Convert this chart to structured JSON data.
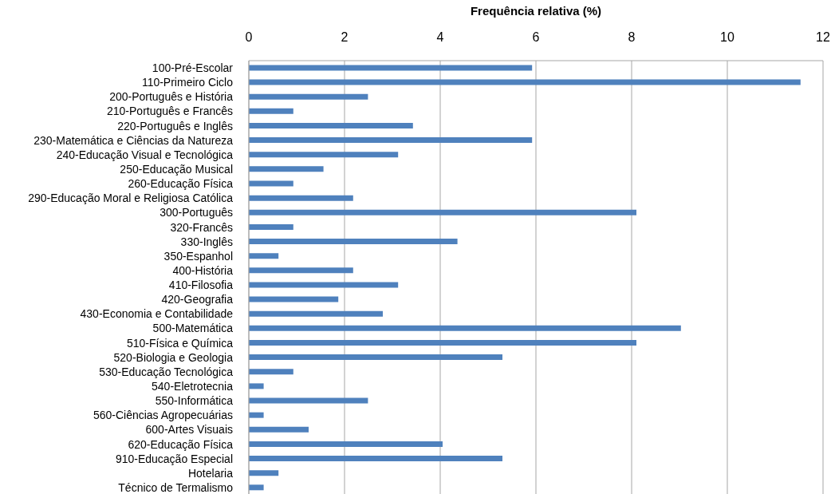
{
  "chart_data": {
    "type": "bar",
    "orientation": "horizontal",
    "xlabel": "Frequência relativa (%)",
    "categories": [
      "100-Pré-Escolar",
      "110-Primeiro Ciclo",
      "200-Português e História",
      "210-Português e Francês",
      "220-Português e Inglês",
      "230-Matemática e Ciências da Natureza",
      "240-Educação Visual e Tecnológica",
      "250-Educação Musical",
      "260-Educação Física",
      "290-Educação Moral e Religiosa Católica",
      "300-Português",
      "320-Francês",
      "330-Inglês",
      "350-Espanhol",
      "400-História",
      "410-Filosofia",
      "420-Geografia",
      "430-Economia e Contabilidade",
      "500-Matemática",
      "510-Física e Química",
      "520-Biologia e Geologia",
      "530-Educação Tecnológica",
      "540-Eletrotecnia",
      "550-Informática",
      "560-Ciências Agropecuárias",
      "600-Artes Visuais",
      "620-Educação Física",
      "910-Educação Especial",
      "Hotelaria",
      "Técnico de Termalismo"
    ],
    "values": [
      5.92,
      11.53,
      2.49,
      0.93,
      3.43,
      5.92,
      3.12,
      1.56,
      0.93,
      2.18,
      8.1,
      0.93,
      4.36,
      0.62,
      2.18,
      3.12,
      1.87,
      2.8,
      9.03,
      8.1,
      5.3,
      0.93,
      0.31,
      2.49,
      0.31,
      1.25,
      4.05,
      5.3,
      0.62,
      0.31
    ],
    "color": "#4f81bd",
    "xlim": [
      0,
      12
    ],
    "xticks": [
      0,
      2,
      4,
      6,
      8,
      10,
      12
    ],
    "grid": "x"
  }
}
